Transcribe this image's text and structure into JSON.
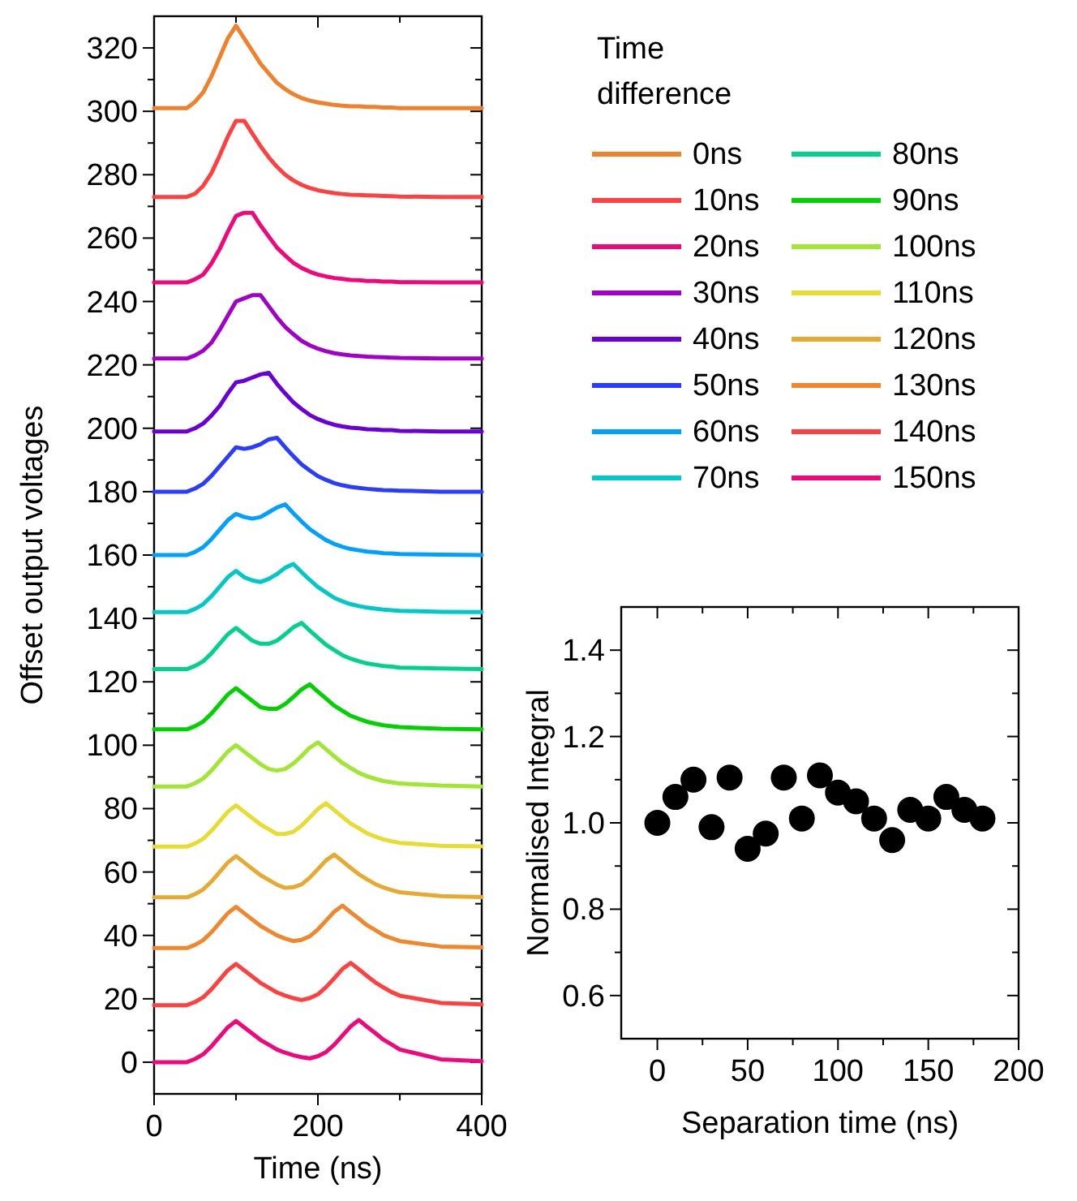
{
  "chart_data": [
    {
      "type": "line",
      "xlabel": "Time (ns)",
      "ylabel": "Offset output voltages",
      "legend_title": "Time difference",
      "legend": "right",
      "xlim": [
        0,
        400
      ],
      "xticks": [
        0,
        {
          "value": 100,
          "label": null
        },
        200,
        {
          "value": 300,
          "label": null
        },
        400
      ],
      "ylim": [
        -10,
        330
      ],
      "yticks": [
        0,
        {
          "value": 10,
          "label": null
        },
        20,
        {
          "value": 30,
          "label": null
        },
        40,
        {
          "value": 50,
          "label": null
        },
        60,
        {
          "value": 70,
          "label": null
        },
        80,
        {
          "value": 90,
          "label": null
        },
        100,
        {
          "value": 110,
          "label": null
        },
        120,
        {
          "value": 130,
          "label": null
        },
        140,
        {
          "value": 150,
          "label": null
        },
        160,
        {
          "value": 170,
          "label": null
        },
        180,
        {
          "value": 190,
          "label": null
        },
        200,
        {
          "value": 210,
          "label": null
        },
        220,
        {
          "value": 230,
          "label": null
        },
        240,
        {
          "value": 250,
          "label": null
        },
        260,
        {
          "value": 270,
          "label": null
        },
        280,
        {
          "value": 290,
          "label": null
        },
        300,
        {
          "value": 310,
          "label": null
        },
        320
      ],
      "x": [
        0,
        40,
        50,
        60,
        70,
        80,
        90,
        100,
        110,
        120,
        130,
        140,
        150,
        160,
        170,
        180,
        190,
        200,
        210,
        220,
        230,
        240,
        250,
        260,
        270,
        280,
        290,
        300,
        350,
        400
      ],
      "series": [
        {
          "name": "0ns",
          "color": "#f0812a",
          "values": [
            301,
            301,
            303,
            306,
            311,
            317,
            323,
            327,
            323,
            319,
            315,
            312,
            309,
            307,
            305.4,
            304.2,
            303.4,
            302.8,
            302.4,
            302,
            301.8,
            301.6,
            301.6,
            301.4,
            301.4,
            301.2,
            301.2,
            301,
            301,
            301
          ]
        },
        {
          "name": "10ns",
          "color": "#ff4040",
          "values": [
            273,
            273,
            274,
            276.5,
            280.5,
            286,
            292,
            297,
            297,
            293,
            289,
            285.5,
            282.5,
            280,
            278.2,
            276.8,
            275.8,
            275.1,
            274.6,
            274.2,
            273.9,
            273.7,
            273.6,
            273.5,
            273.4,
            273.3,
            273.2,
            273.1,
            273,
            273
          ]
        },
        {
          "name": "20ns",
          "color": "#f0087a",
          "values": [
            246,
            246,
            247,
            248.5,
            252,
            256.5,
            262,
            267,
            268,
            268,
            264,
            260.5,
            257,
            254.5,
            252.2,
            250.6,
            249.4,
            248.5,
            247.9,
            247.4,
            247.1,
            246.8,
            246.7,
            246.5,
            246.5,
            246.3,
            246.3,
            246.1,
            246,
            246
          ]
        },
        {
          "name": "30ns",
          "color": "#a000c8",
          "values": [
            222,
            222,
            223,
            224.5,
            227,
            231,
            235.5,
            240,
            241,
            242,
            242,
            238.5,
            235,
            232,
            229.7,
            227.6,
            226.2,
            225.1,
            224.3,
            223.7,
            223.3,
            223,
            222.8,
            222.6,
            222.5,
            222.4,
            222.3,
            222.2,
            222,
            222
          ]
        },
        {
          "name": "40ns",
          "color": "#6a00d8",
          "values": [
            199,
            199,
            200,
            201.5,
            204,
            207,
            211,
            214.5,
            215,
            216,
            217,
            217.5,
            214,
            211,
            208.2,
            206.1,
            204.2,
            202.9,
            201.9,
            201.1,
            200.6,
            200.2,
            200,
            199.7,
            199.6,
            199.4,
            199.4,
            199.2,
            199,
            199
          ]
        },
        {
          "name": "50ns",
          "color": "#2a3cff",
          "values": [
            180,
            180,
            181,
            182.5,
            185,
            188,
            191,
            194,
            193.5,
            194,
            195,
            196.5,
            197,
            194,
            191.2,
            188.6,
            186.7,
            184.9,
            183.7,
            182.7,
            182,
            181.5,
            181.2,
            180.9,
            180.7,
            180.5,
            180.4,
            180.3,
            180,
            180
          ]
        },
        {
          "name": "60ns",
          "color": "#00a0ff",
          "values": [
            160,
            160,
            161,
            162.5,
            165,
            168,
            171,
            173,
            172,
            171.5,
            172,
            173.5,
            175,
            176,
            173.2,
            170.6,
            168.2,
            166.4,
            164.7,
            163.5,
            162.6,
            161.9,
            161.5,
            161.1,
            160.9,
            160.6,
            160.5,
            160.3,
            160.1,
            160
          ]
        },
        {
          "name": "70ns",
          "color": "#00c8c8",
          "values": [
            142,
            142,
            143,
            144.5,
            147,
            150,
            153,
            155,
            153,
            152,
            151.5,
            152.5,
            154,
            156,
            157.2,
            154.6,
            152.2,
            149.9,
            148.2,
            146.5,
            145.4,
            144.5,
            143.9,
            143.4,
            143.1,
            142.8,
            142.6,
            142.4,
            142.1,
            142
          ]
        },
        {
          "name": "80ns",
          "color": "#00d28c",
          "values": [
            124,
            124,
            125,
            126.5,
            129,
            132,
            135,
            137,
            135,
            133,
            132,
            132,
            133,
            135,
            137.2,
            138.6,
            136.2,
            133.9,
            131.7,
            130,
            128.4,
            127.3,
            126.5,
            125.8,
            125.4,
            125,
            124.8,
            124.5,
            124.2,
            124
          ]
        },
        {
          "name": "90ns",
          "color": "#00d200",
          "values": [
            105,
            105,
            106,
            107.5,
            110,
            113,
            116,
            118,
            116,
            114,
            112,
            111.5,
            111.5,
            113,
            115.2,
            117.6,
            119.2,
            116.9,
            114.7,
            112.5,
            110.9,
            109.3,
            108.3,
            107.4,
            106.8,
            106.3,
            106,
            105.7,
            105.2,
            105
          ]
        },
        {
          "name": "100ns",
          "color": "#a0e632",
          "values": [
            87,
            87,
            88,
            89.5,
            92,
            95,
            98,
            100,
            98,
            96,
            94,
            92.5,
            92,
            92.5,
            94.2,
            96.6,
            99.2,
            100.9,
            98.7,
            96.5,
            94.4,
            92.8,
            91.3,
            90.2,
            89.4,
            88.7,
            88.3,
            87.9,
            87.3,
            87
          ]
        },
        {
          "name": "110ns",
          "color": "#e6dc32",
          "values": [
            68,
            68,
            69,
            70.5,
            73,
            76,
            79,
            81,
            79,
            77,
            75,
            73.5,
            72,
            72,
            72.7,
            74.6,
            77.2,
            79.9,
            81.7,
            79.5,
            77.4,
            75.3,
            73.8,
            72.2,
            71.2,
            70.3,
            69.7,
            69.2,
            68.3,
            68.1
          ]
        },
        {
          "name": "120ns",
          "color": "#e6aa32",
          "values": [
            52,
            52,
            53,
            54.5,
            57,
            60,
            63,
            65,
            63,
            61,
            59,
            57.5,
            56,
            55,
            55.2,
            56.1,
            58.2,
            60.9,
            63.7,
            65.5,
            63.4,
            61.3,
            59.3,
            57.7,
            56.2,
            55.1,
            54.3,
            53.6,
            52.4,
            52.1
          ]
        },
        {
          "name": "130ns",
          "color": "#f0872d",
          "values": [
            36,
            36,
            37,
            38.5,
            41,
            44,
            47,
            49,
            47,
            45,
            43,
            41.5,
            40,
            39,
            38.2,
            38.6,
            39.7,
            41.9,
            44.7,
            47.5,
            49.4,
            47.3,
            45.3,
            43.2,
            41.7,
            40.1,
            39.1,
            38.2,
            36.5,
            36.2
          ]
        },
        {
          "name": "140ns",
          "color": "#ff4040",
          "values": [
            18,
            18,
            19,
            20.5,
            23,
            26,
            29,
            31,
            29,
            27,
            25,
            23.5,
            22,
            21,
            20.2,
            19.6,
            20.2,
            21.4,
            23.7,
            26.5,
            29.4,
            31.3,
            29.3,
            27.2,
            25.2,
            23.6,
            22.1,
            21,
            18.7,
            18.2
          ]
        },
        {
          "name": "150ns",
          "color": "#f0087a",
          "values": [
            0,
            0,
            1,
            2.5,
            5,
            8,
            11,
            13,
            11,
            9,
            7,
            5.5,
            4,
            3,
            2.2,
            1.6,
            1.2,
            1.9,
            3.2,
            5.5,
            8.4,
            11.3,
            13.3,
            11.2,
            9.2,
            7.1,
            5.6,
            4,
            0.9,
            0.3
          ]
        }
      ]
    },
    {
      "type": "scatter",
      "xlabel": "Separation time (ns)",
      "ylabel": "Normalised Integral",
      "marker": "circle",
      "xlim": [
        -20,
        200
      ],
      "xticks": [
        0,
        {
          "value": 25,
          "label": null
        },
        50,
        {
          "value": 75,
          "label": null
        },
        100,
        {
          "value": 125,
          "label": null
        },
        150,
        {
          "value": 175,
          "label": null
        },
        200
      ],
      "ylim": [
        0.5,
        1.5
      ],
      "yticks": [
        0.6,
        {
          "value": 0.7,
          "label": null
        },
        0.8,
        {
          "value": 0.9,
          "label": null
        },
        {
          "value": 1,
          "label": "1.0"
        },
        {
          "value": 1.1,
          "label": null
        },
        1.2,
        {
          "value": 1.3,
          "label": null
        },
        1.4
      ],
      "x": [
        0,
        10,
        20,
        30,
        40,
        50,
        60,
        70,
        80,
        90,
        100,
        110,
        120,
        130,
        140,
        150,
        160,
        170,
        180
      ],
      "series": [
        {
          "color": "#000000",
          "values": [
            1.0,
            1.06,
            1.1,
            0.99,
            1.105,
            0.94,
            0.975,
            1.105,
            1.01,
            1.11,
            1.07,
            1.05,
            1.01,
            0.96,
            1.03,
            1.01,
            1.06,
            1.03,
            1.01
          ]
        }
      ]
    }
  ]
}
